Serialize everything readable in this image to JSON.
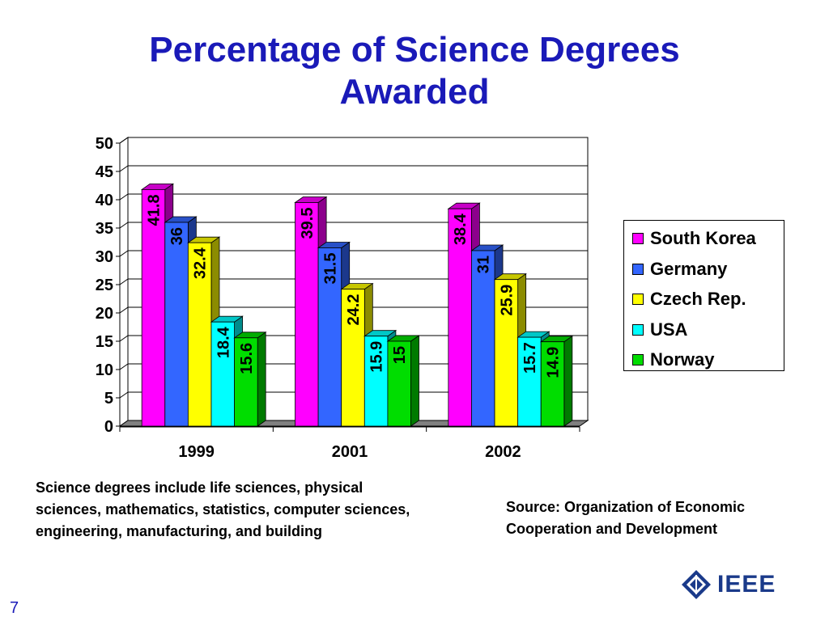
{
  "title": "Percentage of Science Degrees\nAwarded",
  "note": "Science degrees include life sciences, physical sciences, mathematics, statistics, computer sciences, engineering, manufacturing, and building",
  "source": "Source: Organization of Economic Cooperation and Development",
  "page_number": "7",
  "logo_text": "IEEE",
  "chart_data": {
    "type": "bar",
    "style": "3d-clustered-column",
    "categories": [
      "1999",
      "2001",
      "2002"
    ],
    "series": [
      {
        "name": "South Korea",
        "color": "#ff00ff",
        "values": [
          41.8,
          39.5,
          38.4
        ]
      },
      {
        "name": "Germany",
        "color": "#3366ff",
        "values": [
          36,
          31.5,
          31
        ]
      },
      {
        "name": "Czech Rep.",
        "color": "#ffff00",
        "values": [
          32.4,
          24.2,
          25.9
        ]
      },
      {
        "name": "USA",
        "color": "#00ffff",
        "values": [
          18.4,
          15.9,
          15.7
        ]
      },
      {
        "name": "Norway",
        "color": "#00dd00",
        "values": [
          15.6,
          15,
          14.9
        ]
      }
    ],
    "ylim": [
      0,
      50
    ],
    "yticks": [
      0,
      5,
      10,
      15,
      20,
      25,
      30,
      35,
      40,
      45,
      50
    ],
    "grid": true,
    "legend_position": "right",
    "data_labels": true
  }
}
